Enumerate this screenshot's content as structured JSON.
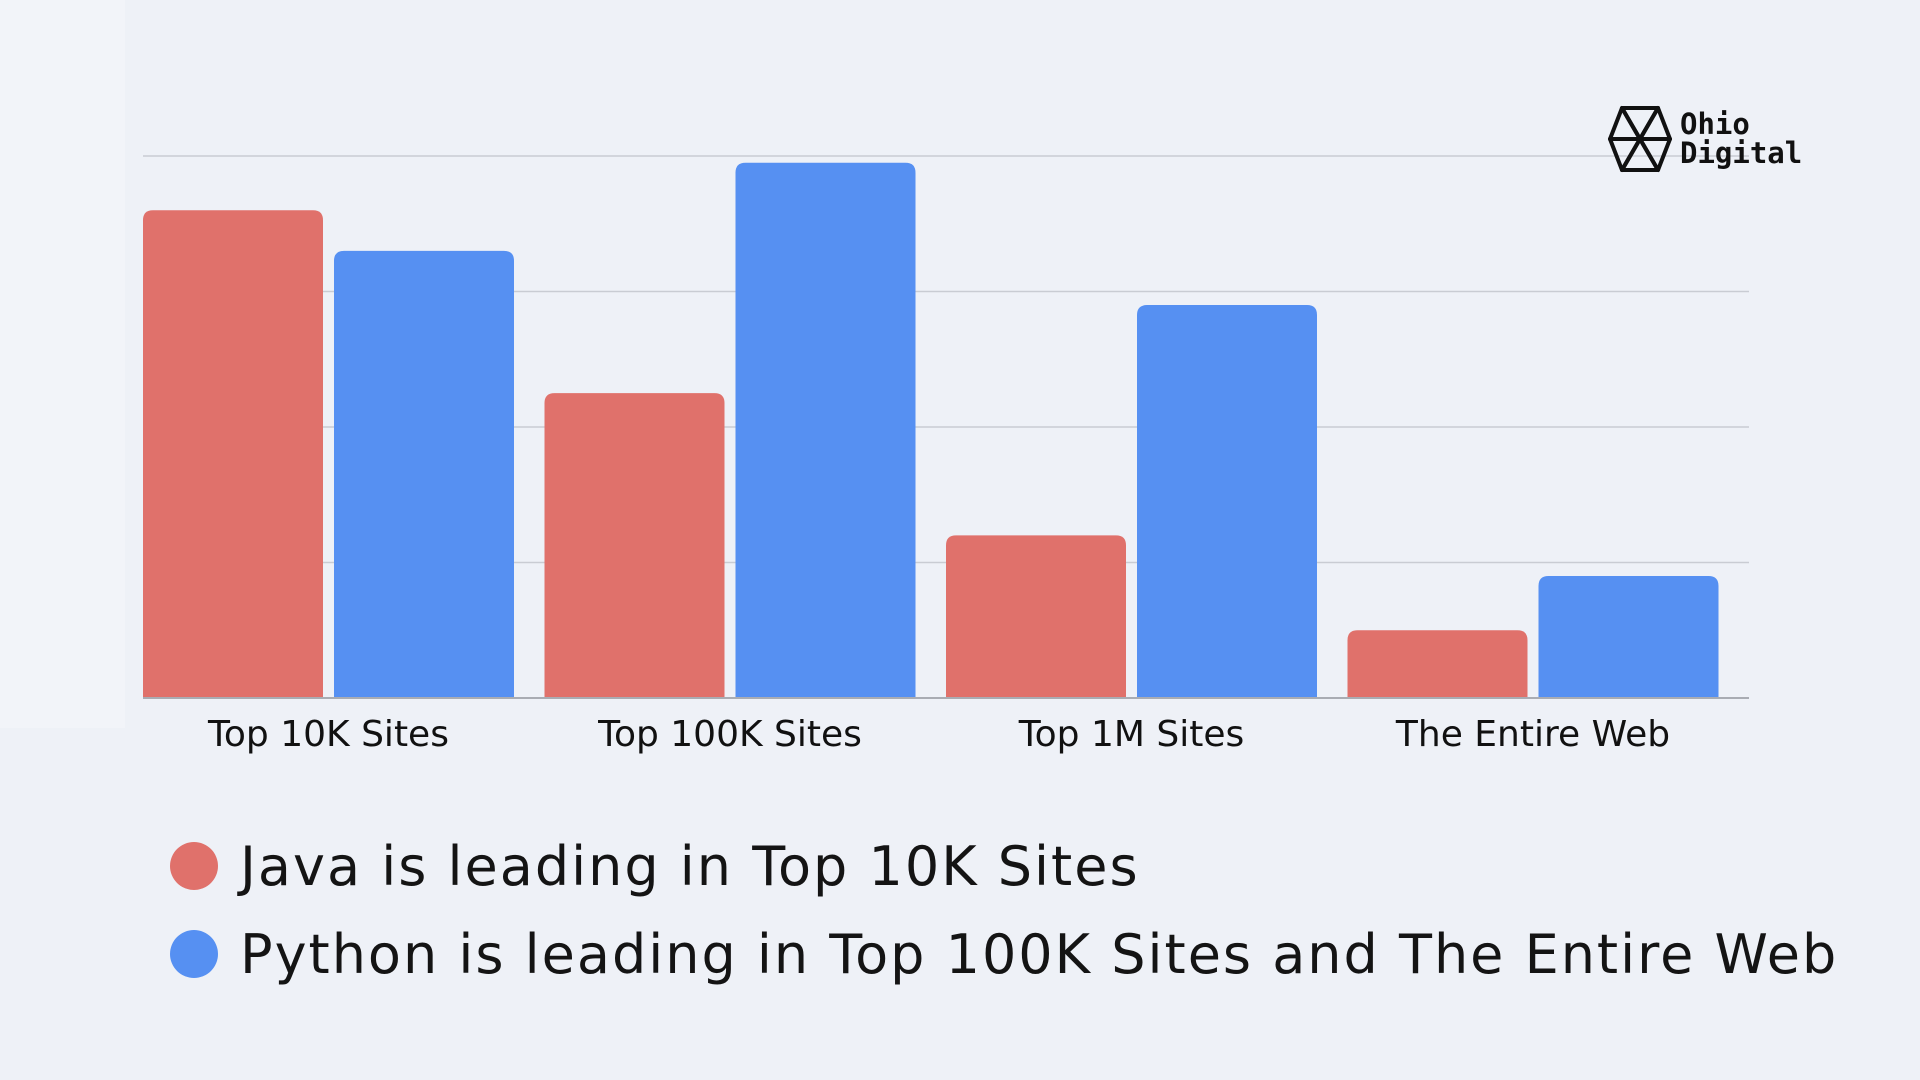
{
  "logo": {
    "line1": "Ohio",
    "line2": "Digital",
    "icon": "hexagon-triangles-icon"
  },
  "chart_data": {
    "type": "bar",
    "categories": [
      "Top 10K Sites",
      "Top 100K Sites",
      "Top 1M Sites",
      "The Entire Web"
    ],
    "series": [
      {
        "color": "#e0716b",
        "values": [
          3.6,
          2.25,
          1.2,
          0.5
        ]
      },
      {
        "color": "#5690f2",
        "values": [
          3.3,
          3.95,
          2.9,
          0.9
        ]
      }
    ],
    "ylim": [
      0,
      4
    ],
    "grid": true,
    "y_tick_labels_shown": false,
    "legend_position": "bottom"
  },
  "legend": [
    {
      "text": "Java is leading in Top 10K Sites",
      "color": "#e0716b"
    },
    {
      "text": "Python is leading in Top 100K Sites and The Entire Web",
      "color": "#5690f2"
    }
  ]
}
